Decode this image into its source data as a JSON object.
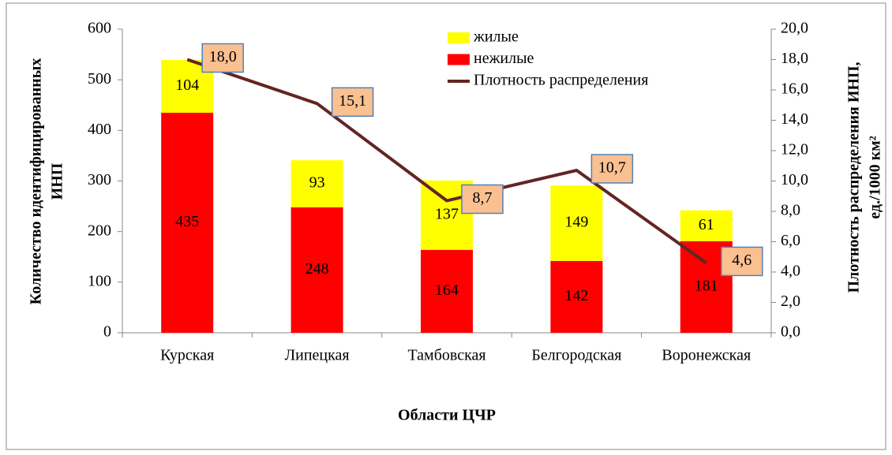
{
  "chart_data": {
    "type": "bar",
    "stacked": true,
    "categories": [
      "Курская",
      "Липецкая",
      "Тамбовская",
      "Белгородская",
      "Воронежская"
    ],
    "series": [
      {
        "name": "нежилые",
        "color": "#ff0000",
        "values": [
          435,
          248,
          164,
          142,
          181
        ]
      },
      {
        "name": "жилые",
        "color": "#ffff00",
        "values": [
          104,
          93,
          137,
          149,
          61
        ]
      },
      {
        "name": "Плотность распределения",
        "color": "#632523",
        "type": "line",
        "axis": "y2",
        "values": [
          18.0,
          15.1,
          8.7,
          10.7,
          4.6
        ],
        "value_labels": [
          "18,0",
          "15,1",
          "8,7",
          "10,7",
          "4,6"
        ]
      }
    ],
    "ylim": [
      0,
      600
    ],
    "yticks": [
      0,
      100,
      200,
      300,
      400,
      500,
      600
    ],
    "y2lim": [
      0,
      20
    ],
    "y2ticks": [
      {
        "value": 0,
        "label": "0,0"
      },
      {
        "value": 2,
        "label": "2,0"
      },
      {
        "value": 4,
        "label": "4,0"
      },
      {
        "value": 6,
        "label": "6,0"
      },
      {
        "value": 8,
        "label": "8,0"
      },
      {
        "value": 10,
        "label": "10,0"
      },
      {
        "value": 12,
        "label": "12,0"
      },
      {
        "value": 14,
        "label": "14,0"
      },
      {
        "value": 16,
        "label": "16,0"
      },
      {
        "value": 18,
        "label": "18,0"
      },
      {
        "value": 20,
        "label": "20,0"
      }
    ],
    "xlabel": "Области ЦЧР",
    "ylabel": [
      "Количество идентифицированных",
      "ИНП"
    ],
    "y2label": [
      "Плотность распределения ИНП,",
      "ед./1000 км²"
    ],
    "legend": "top-center",
    "grid": false
  }
}
